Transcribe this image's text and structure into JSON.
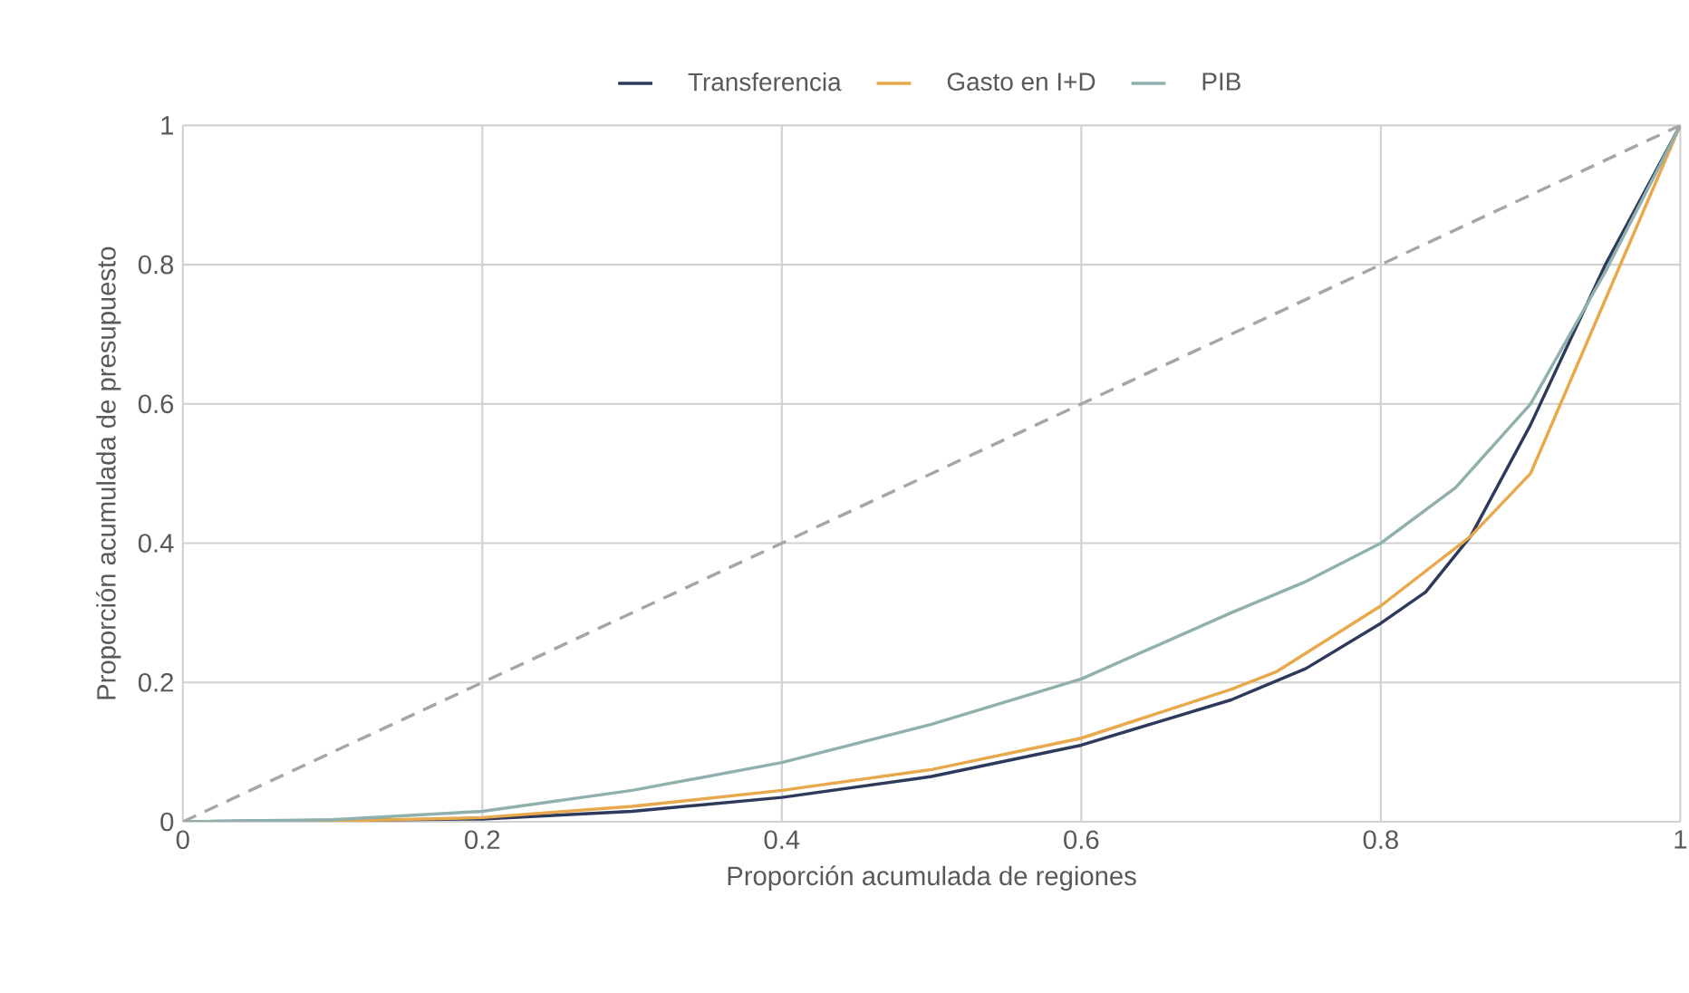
{
  "chart_data": {
    "type": "line",
    "xlabel": "Proporción acumulada de regiones",
    "ylabel": "Proporción acumulada de presupuesto",
    "xlim": [
      0,
      1
    ],
    "ylim": [
      0,
      1
    ],
    "xticks": [
      0,
      0.2,
      0.4,
      0.6,
      0.8,
      1
    ],
    "yticks": [
      0,
      0.2,
      0.4,
      0.6,
      0.8,
      1
    ],
    "grid": true,
    "legend": "top",
    "marker": "none",
    "series": [
      {
        "name": "Transferencia",
        "color": "#2e3a5c",
        "x": [
          0,
          0.1,
          0.2,
          0.3,
          0.4,
          0.5,
          0.6,
          0.7,
          0.75,
          0.8,
          0.83,
          0.86,
          0.9,
          0.95,
          1
        ],
        "values": [
          0,
          null,
          0.004,
          0.015,
          0.035,
          0.065,
          0.11,
          0.175,
          0.22,
          0.285,
          0.33,
          0.41,
          0.57,
          0.8,
          1
        ]
      },
      {
        "name": "Gasto en I+D",
        "color": "#e8a84c",
        "x": [
          0,
          0.1,
          0.2,
          0.3,
          0.4,
          0.5,
          0.6,
          0.7,
          0.73,
          0.8,
          0.86,
          0.9,
          0.95,
          1
        ],
        "values": [
          0,
          0.001,
          0.006,
          0.022,
          0.045,
          0.075,
          0.12,
          0.19,
          0.215,
          0.31,
          0.41,
          0.5,
          0.75,
          1
        ]
      },
      {
        "name": "PIB",
        "color": "#8fb0ad",
        "x": [
          0,
          0.1,
          0.2,
          0.3,
          0.4,
          0.5,
          0.6,
          0.7,
          0.75,
          0.8,
          0.85,
          0.9,
          0.95,
          1
        ],
        "values": [
          0,
          0.003,
          0.015,
          0.045,
          0.085,
          0.14,
          0.205,
          0.3,
          0.345,
          0.4,
          0.48,
          0.6,
          0.79,
          1
        ]
      },
      {
        "color": "#a6a6a6",
        "line_style": "dashed",
        "x": [
          0,
          1
        ],
        "values": [
          0,
          1
        ]
      }
    ]
  }
}
